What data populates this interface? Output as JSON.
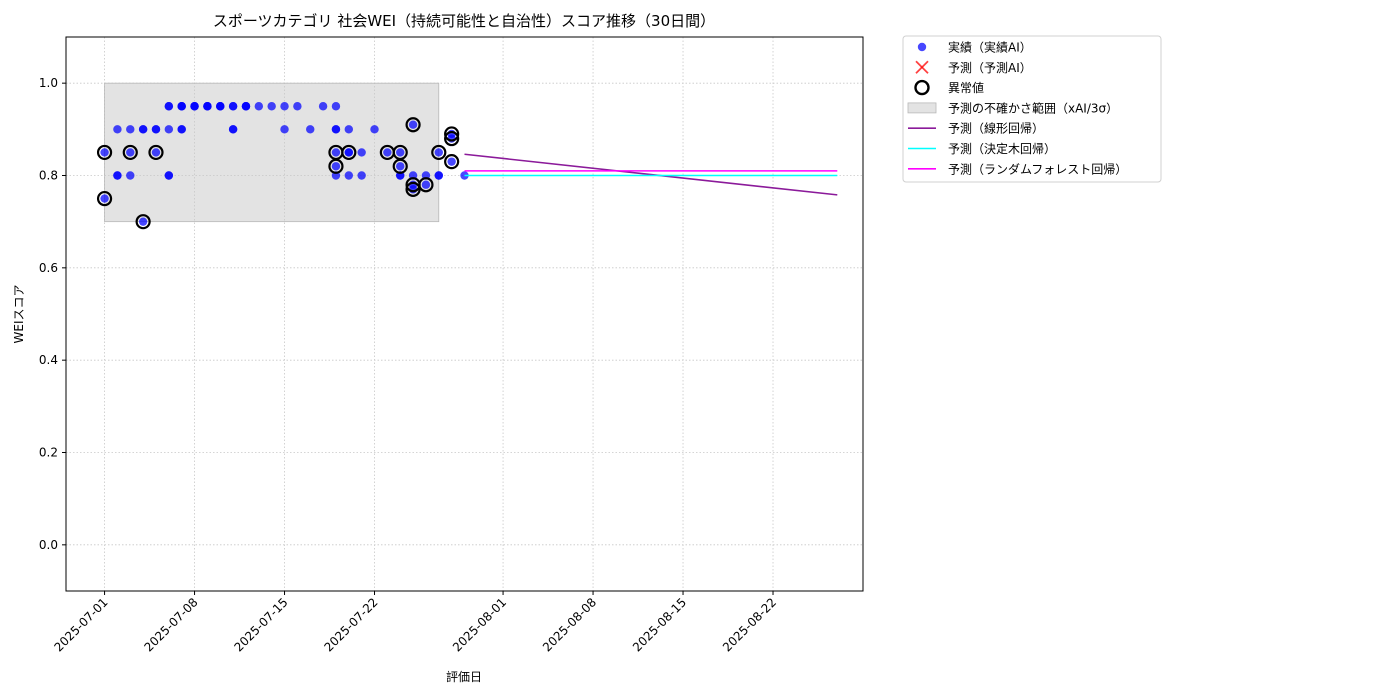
{
  "chart_data": {
    "type": "scatter",
    "title": "スポーツカテゴリ 社会WEI（持続可能性と自治性）スコア推移（30日間）",
    "xlabel": "評価日",
    "ylabel": "WEIスコア",
    "xlim": [
      "2025-06-28",
      "2025-08-29"
    ],
    "ylim": [
      -0.1,
      1.1
    ],
    "xticks": [
      "2025-07-01",
      "2025-07-08",
      "2025-07-15",
      "2025-07-22",
      "2025-08-01",
      "2025-08-08",
      "2025-08-15",
      "2025-08-22"
    ],
    "yticks": [
      "0.0",
      "0.2",
      "0.4",
      "0.6",
      "0.8",
      "1.0"
    ],
    "grid": true,
    "legend_position": "outside-top-right",
    "uncertainty_band": {
      "x": [
        "2025-07-01",
        "2025-07-27"
      ],
      "y": [
        0.7,
        1.0
      ],
      "color": "#c8c8c8"
    },
    "series": [
      {
        "name": "実績（実績AI）",
        "kind": "scatter",
        "color": "#0000ff",
        "points": [
          [
            "2025-07-01",
            0.85
          ],
          [
            "2025-07-01",
            0.75
          ],
          [
            "2025-07-02",
            0.8
          ],
          [
            "2025-07-02",
            0.9
          ],
          [
            "2025-07-02",
            0.8
          ],
          [
            "2025-07-03",
            0.8
          ],
          [
            "2025-07-03",
            0.85
          ],
          [
            "2025-07-03",
            0.9
          ],
          [
            "2025-07-04",
            0.7
          ],
          [
            "2025-07-04",
            0.9
          ],
          [
            "2025-07-04",
            0.9
          ],
          [
            "2025-07-05",
            0.9
          ],
          [
            "2025-07-05",
            0.85
          ],
          [
            "2025-07-05",
            0.9
          ],
          [
            "2025-07-06",
            0.8
          ],
          [
            "2025-07-06",
            0.8
          ],
          [
            "2025-07-06",
            0.9
          ],
          [
            "2025-07-06",
            0.95
          ],
          [
            "2025-07-06",
            0.95
          ],
          [
            "2025-07-07",
            0.95
          ],
          [
            "2025-07-07",
            0.95
          ],
          [
            "2025-07-07",
            0.9
          ],
          [
            "2025-07-07",
            0.95
          ],
          [
            "2025-07-07",
            0.9
          ],
          [
            "2025-07-08",
            0.95
          ],
          [
            "2025-07-08",
            0.95
          ],
          [
            "2025-07-08",
            0.95
          ],
          [
            "2025-07-09",
            0.95
          ],
          [
            "2025-07-09",
            0.95
          ],
          [
            "2025-07-09",
            0.95
          ],
          [
            "2025-07-10",
            0.95
          ],
          [
            "2025-07-10",
            0.95
          ],
          [
            "2025-07-10",
            0.95
          ],
          [
            "2025-07-11",
            0.95
          ],
          [
            "2025-07-11",
            0.9
          ],
          [
            "2025-07-11",
            0.95
          ],
          [
            "2025-07-11",
            0.9
          ],
          [
            "2025-07-12",
            0.95
          ],
          [
            "2025-07-12",
            0.95
          ],
          [
            "2025-07-12",
            0.95
          ],
          [
            "2025-07-13",
            0.95
          ],
          [
            "2025-07-14",
            0.95
          ],
          [
            "2025-07-15",
            0.95
          ],
          [
            "2025-07-15",
            0.9
          ],
          [
            "2025-07-16",
            0.95
          ],
          [
            "2025-07-17",
            0.9
          ],
          [
            "2025-07-18",
            0.95
          ],
          [
            "2025-07-19",
            0.95
          ],
          [
            "2025-07-19",
            0.9
          ],
          [
            "2025-07-19",
            0.85
          ],
          [
            "2025-07-19",
            0.82
          ],
          [
            "2025-07-19",
            0.9
          ],
          [
            "2025-07-19",
            0.8
          ],
          [
            "2025-07-20",
            0.85
          ],
          [
            "2025-07-20",
            0.8
          ],
          [
            "2025-07-20",
            0.9
          ],
          [
            "2025-07-20",
            0.85
          ],
          [
            "2025-07-21",
            0.85
          ],
          [
            "2025-07-21",
            0.8
          ],
          [
            "2025-07-22",
            0.9
          ],
          [
            "2025-07-23",
            0.85
          ],
          [
            "2025-07-24",
            0.85
          ],
          [
            "2025-07-24",
            0.8
          ],
          [
            "2025-07-24",
            0.82
          ],
          [
            "2025-07-24",
            0.8
          ],
          [
            "2025-07-25",
            0.91
          ],
          [
            "2025-07-25",
            0.77
          ],
          [
            "2025-07-25",
            0.8
          ],
          [
            "2025-07-25",
            0.78
          ],
          [
            "2025-07-26",
            0.8
          ],
          [
            "2025-07-26",
            0.78
          ],
          [
            "2025-07-27",
            0.8
          ],
          [
            "2025-07-27",
            0.85
          ],
          [
            "2025-07-27",
            0.8
          ],
          [
            "2025-07-28",
            0.89
          ],
          [
            "2025-07-28",
            0.88
          ],
          [
            "2025-07-28",
            0.83
          ],
          [
            "2025-07-29",
            0.8
          ]
        ]
      },
      {
        "name": "予測（予測AI）",
        "kind": "scatter",
        "color": "#ff0000",
        "points": []
      },
      {
        "name": "異常値",
        "kind": "outlier",
        "color": "#000000",
        "points": [
          [
            "2025-07-01",
            0.85
          ],
          [
            "2025-07-01",
            0.75
          ],
          [
            "2025-07-03",
            0.85
          ],
          [
            "2025-07-04",
            0.7
          ],
          [
            "2025-07-05",
            0.85
          ],
          [
            "2025-07-19",
            0.85
          ],
          [
            "2025-07-19",
            0.82
          ],
          [
            "2025-07-20",
            0.85
          ],
          [
            "2025-07-23",
            0.85
          ],
          [
            "2025-07-24",
            0.85
          ],
          [
            "2025-07-24",
            0.82
          ],
          [
            "2025-07-25",
            0.91
          ],
          [
            "2025-07-25",
            0.78
          ],
          [
            "2025-07-25",
            0.77
          ],
          [
            "2025-07-26",
            0.78
          ],
          [
            "2025-07-27",
            0.85
          ],
          [
            "2025-07-28",
            0.89
          ],
          [
            "2025-07-28",
            0.88
          ],
          [
            "2025-07-28",
            0.83
          ]
        ]
      },
      {
        "name": "予測（線形回帰）",
        "kind": "line",
        "color": "#8b1a9a",
        "x": [
          "2025-07-29",
          "2025-08-27"
        ],
        "values": [
          0.846,
          0.758
        ]
      },
      {
        "name": "予測（決定木回帰）",
        "kind": "line",
        "color": "#00ffff",
        "x": [
          "2025-07-29",
          "2025-08-27"
        ],
        "values": [
          0.8,
          0.8
        ]
      },
      {
        "name": "予測（ランダムフォレスト回帰）",
        "kind": "line",
        "color": "#ff00ff",
        "x": [
          "2025-07-29",
          "2025-08-27"
        ],
        "values": [
          0.81,
          0.81
        ]
      }
    ],
    "legend": [
      {
        "label": "実績（実績AI）",
        "marker": "dot",
        "color": "#0000ff"
      },
      {
        "label": "予測（予測AI）",
        "marker": "x",
        "color": "#ff0000"
      },
      {
        "label": "異常値",
        "marker": "ring",
        "color": "#000000"
      },
      {
        "label": "予測の不確かさ範囲（xAI/3σ）",
        "marker": "patch",
        "color": "#c8c8c8"
      },
      {
        "label": "予測（線形回帰）",
        "marker": "line",
        "color": "#8b1a9a"
      },
      {
        "label": "予測（決定木回帰）",
        "marker": "line",
        "color": "#00ffff"
      },
      {
        "label": "予測（ランダムフォレスト回帰）",
        "marker": "line",
        "color": "#ff00ff"
      }
    ]
  }
}
